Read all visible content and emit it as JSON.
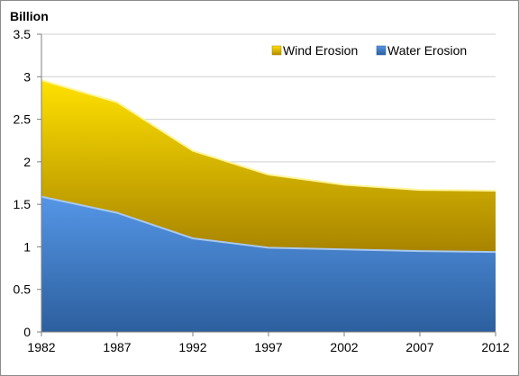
{
  "chart_data": {
    "type": "area",
    "stacked": true,
    "unit_label": "Billion",
    "categories": [
      "1982",
      "1987",
      "1992",
      "1997",
      "2002",
      "2007",
      "2012"
    ],
    "x": [
      1982,
      1987,
      1992,
      1997,
      2002,
      2007,
      2012
    ],
    "series": [
      {
        "name": "Water Erosion",
        "values": [
          1.59,
          1.4,
          1.1,
          0.99,
          0.97,
          0.95,
          0.94
        ],
        "color": "#3d7bc9"
      },
      {
        "name": "Wind Erosion",
        "values": [
          1.37,
          1.3,
          1.03,
          0.86,
          0.76,
          0.72,
          0.72
        ],
        "color": "#d4a600"
      }
    ],
    "ylim": [
      0,
      3.5
    ],
    "yticks": [
      "0",
      "0.5",
      "1",
      "1.5",
      "2",
      "2.5",
      "3",
      "3.5"
    ],
    "grid": true,
    "legend": {
      "placement": "top-right",
      "order": [
        "Wind Erosion",
        "Water Erosion"
      ]
    }
  }
}
